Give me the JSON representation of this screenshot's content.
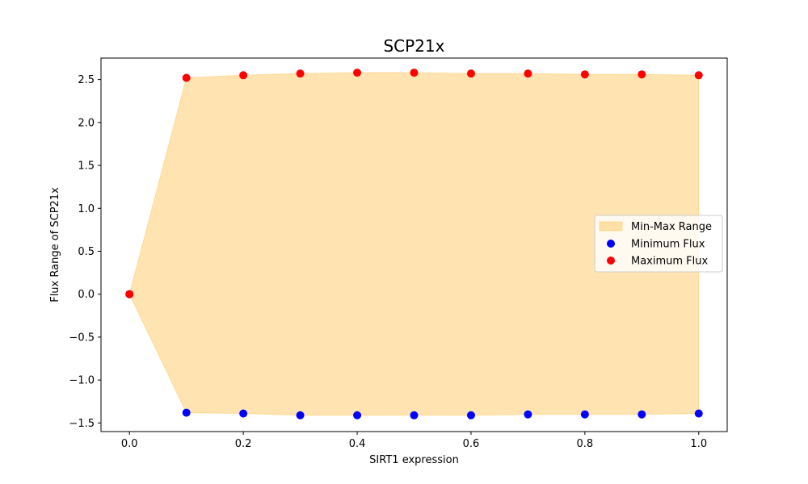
{
  "chart_data": {
    "type": "area",
    "title": "SCP21x",
    "xlabel": "SIRT1 expression",
    "ylabel": "Flux Range of SCP21x",
    "x": [
      0.0,
      0.1,
      0.2,
      0.3,
      0.4,
      0.5,
      0.6,
      0.7,
      0.8,
      0.9,
      1.0
    ],
    "xlim": [
      -0.05,
      1.05
    ],
    "ylim": [
      -1.6,
      2.75
    ],
    "xticks": [
      0.0,
      0.2,
      0.4,
      0.6,
      0.8,
      1.0
    ],
    "xtick_labels": [
      "0.0",
      "0.2",
      "0.4",
      "0.6",
      "0.8",
      "1.0"
    ],
    "yticks": [
      -1.5,
      -1.0,
      -0.5,
      0.0,
      0.5,
      1.0,
      1.5,
      2.0,
      2.5
    ],
    "ytick_labels": [
      "−1.5",
      "−1.0",
      "−0.5",
      "0.0",
      "0.5",
      "1.0",
      "1.5",
      "2.0",
      "2.5"
    ],
    "grid": false,
    "legend_position": "center-right",
    "series": [
      {
        "name": "Min-Max Range",
        "kind": "fill_between",
        "color": "#ffa500",
        "alpha": 0.3,
        "lower": [
          0.0,
          -1.38,
          -1.39,
          -1.41,
          -1.41,
          -1.41,
          -1.41,
          -1.4,
          -1.4,
          -1.4,
          -1.39
        ],
        "upper": [
          0.0,
          2.52,
          2.55,
          2.57,
          2.58,
          2.58,
          2.57,
          2.57,
          2.56,
          2.56,
          2.55
        ]
      },
      {
        "name": "Minimum Flux",
        "kind": "scatter",
        "color": "#0000ff",
        "values": [
          0.0,
          -1.38,
          -1.39,
          -1.41,
          -1.41,
          -1.41,
          -1.41,
          -1.4,
          -1.4,
          -1.4,
          -1.39
        ]
      },
      {
        "name": "Maximum Flux",
        "kind": "scatter",
        "color": "#ff0000",
        "values": [
          0.0,
          2.52,
          2.55,
          2.57,
          2.58,
          2.58,
          2.57,
          2.57,
          2.56,
          2.56,
          2.55
        ]
      }
    ]
  }
}
